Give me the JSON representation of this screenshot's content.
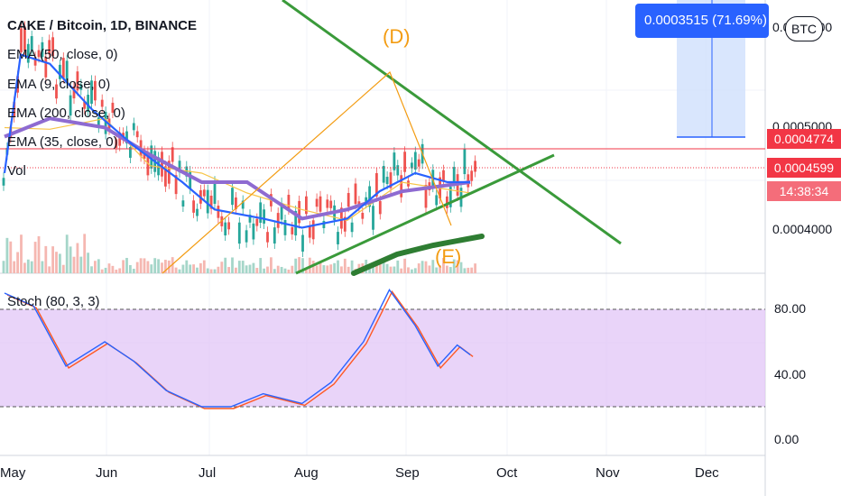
{
  "header": {
    "symbol": "CAKE / Bitcoin, 1D, BINANCE",
    "indicators": [
      "EMA (50, close, 0)",
      "EMA (9, close, 0)",
      "EMA (200, close, 0)",
      "EMA (35, close, 0)",
      "Vol"
    ],
    "oscillator": "Stoch (80, 3, 3)"
  },
  "price_axis": {
    "labels": [
      "0.0006000",
      "0.0005000",
      "0.0004000"
    ],
    "tags": [
      {
        "label": "0.0004774",
        "color": "#f23645"
      },
      {
        "label": "0.0004599",
        "color": "#f23645"
      },
      {
        "label": "14:38:34",
        "color": "#f23645"
      }
    ],
    "currency_badge": "BTC"
  },
  "stoch_axis": {
    "labels": [
      "80.00",
      "40.00",
      "0.00"
    ]
  },
  "time_axis": {
    "labels": [
      "May",
      "Jun",
      "Jul",
      "Aug",
      "Sep",
      "Oct",
      "Nov",
      "Dec"
    ]
  },
  "measure_tool": {
    "label": "0.0003515 (71.69%) 35"
  },
  "wave_labels": [
    "(D)",
    "(E)"
  ],
  "colors": {
    "up": "#26a69a",
    "down": "#ef5350",
    "ema50": "#2962ff",
    "ema9": "#f7c548",
    "ema200": "#2e7d32",
    "ema35": "#8e6bd1",
    "stoch_k": "#2962ff",
    "stoch_d": "#ff5722",
    "stoch_band": "#e1c5f7",
    "trendline": "#3a9a3a",
    "wave": "#f39c12",
    "price_line": "#f23645"
  },
  "chart_data": [
    {
      "type": "candlestick",
      "title": "CAKE / Bitcoin, 1D, BINANCE",
      "x_range": [
        "2021-05-01",
        "2021-12-20"
      ],
      "ylim": [
        0.00036,
        0.00066
      ],
      "last_price": 0.0004599,
      "reference_price": 0.0004774,
      "series": [
        {
          "name": "EMA (50, close, 0)",
          "points": [
            [
              "2021-05-01",
              0.00047
            ],
            [
              "2021-05-06",
              0.0006
            ],
            [
              "2021-05-15",
              0.00059
            ],
            [
              "2021-05-28",
              0.00054
            ],
            [
              "2021-06-10",
              0.0005
            ],
            [
              "2021-06-25",
              0.00046
            ],
            [
              "2021-07-05",
              0.00043
            ],
            [
              "2021-07-20",
              0.00042
            ],
            [
              "2021-08-01",
              0.00041
            ],
            [
              "2021-08-15",
              0.00042
            ],
            [
              "2021-08-25",
              0.00045
            ],
            [
              "2021-09-05",
              0.00047
            ],
            [
              "2021-09-15",
              0.00046
            ],
            [
              "2021-09-22",
              0.00046
            ]
          ]
        },
        {
          "name": "EMA (35, close, 0)",
          "points": [
            [
              "2021-05-01",
              0.00051
            ],
            [
              "2021-05-15",
              0.00053
            ],
            [
              "2021-06-01",
              0.00052
            ],
            [
              "2021-06-15",
              0.00049
            ],
            [
              "2021-07-01",
              0.00046
            ],
            [
              "2021-07-15",
              0.00046
            ],
            [
              "2021-08-01",
              0.00042
            ],
            [
              "2021-08-15",
              0.00043
            ],
            [
              "2021-09-01",
              0.00045
            ],
            [
              "2021-09-22",
              0.00046
            ]
          ]
        }
      ],
      "volume_visible": true
    },
    {
      "type": "line",
      "title": "Stoch (80, 3, 3)",
      "ylim": [
        0,
        100
      ],
      "bands": [
        20,
        80
      ],
      "series": [
        {
          "name": "%K",
          "points": [
            [
              "2021-05-01",
              90
            ],
            [
              "2021-05-10",
              82
            ],
            [
              "2021-05-20",
              45
            ],
            [
              "2021-06-01",
              60
            ],
            [
              "2021-06-10",
              48
            ],
            [
              "2021-06-20",
              30
            ],
            [
              "2021-07-01",
              20
            ],
            [
              "2021-07-10",
              20
            ],
            [
              "2021-07-20",
              28
            ],
            [
              "2021-08-01",
              22
            ],
            [
              "2021-08-10",
              35
            ],
            [
              "2021-08-20",
              60
            ],
            [
              "2021-08-28",
              92
            ],
            [
              "2021-09-05",
              70
            ],
            [
              "2021-09-12",
              45
            ],
            [
              "2021-09-18",
              58
            ],
            [
              "2021-09-22",
              52
            ]
          ]
        }
      ]
    }
  ]
}
